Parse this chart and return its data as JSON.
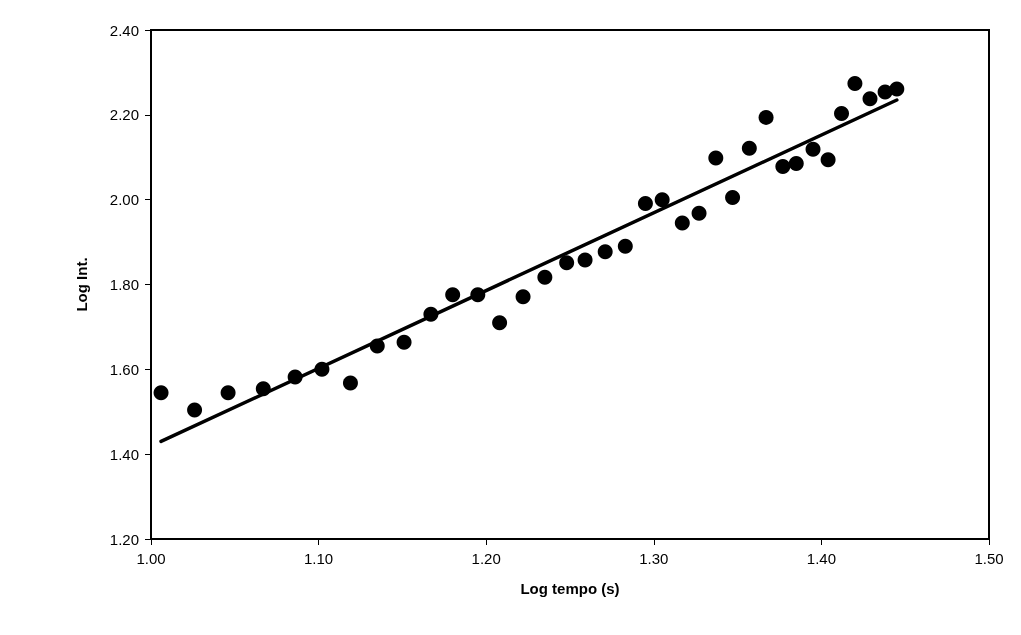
{
  "chart_data": {
    "type": "scatter",
    "xlabel": "Log tempo (s)",
    "ylabel": "Log Int.",
    "xlim": [
      1.0,
      1.5
    ],
    "ylim": [
      1.2,
      2.4
    ],
    "xticks": [
      {
        "value": 1.0,
        "label": "1.00"
      },
      {
        "value": 1.1,
        "label": "1.10"
      },
      {
        "value": 1.2,
        "label": "1.20"
      },
      {
        "value": 1.3,
        "label": "1.30"
      },
      {
        "value": 1.4,
        "label": "1.40"
      },
      {
        "value": 1.5,
        "label": "1.50"
      }
    ],
    "yticks": [
      {
        "value": 1.2,
        "label": "1.20"
      },
      {
        "value": 1.4,
        "label": "1.40"
      },
      {
        "value": 1.6,
        "label": "1.60"
      },
      {
        "value": 1.8,
        "label": "1.80"
      },
      {
        "value": 2.0,
        "label": "2.00"
      },
      {
        "value": 2.2,
        "label": "2.20"
      },
      {
        "value": 2.4,
        "label": "2.40"
      }
    ],
    "grid": false,
    "marker": "circle",
    "series": [
      {
        "color": "#000000",
        "x": [
          1.006,
          1.026,
          1.046,
          1.067,
          1.086,
          1.102,
          1.119,
          1.135,
          1.151,
          1.167,
          1.18,
          1.195,
          1.208,
          1.222,
          1.235,
          1.248,
          1.259,
          1.271,
          1.283,
          1.295,
          1.305,
          1.317,
          1.327,
          1.337,
          1.347,
          1.357,
          1.367,
          1.377,
          1.385,
          1.395,
          1.404,
          1.412,
          1.42,
          1.429,
          1.438,
          1.445
        ],
        "values": [
          1.545,
          1.504,
          1.545,
          1.554,
          1.582,
          1.6,
          1.568,
          1.655,
          1.664,
          1.73,
          1.776,
          1.776,
          1.71,
          1.771,
          1.817,
          1.851,
          1.858,
          1.877,
          1.89,
          1.991,
          2.0,
          1.945,
          1.968,
          2.098,
          2.005,
          2.121,
          2.194,
          2.078,
          2.085,
          2.119,
          2.094,
          2.203,
          2.274,
          2.238,
          2.254,
          2.261
        ]
      },
      {
        "type": "line",
        "color": "#000000",
        "x": [
          1.006,
          1.445
        ],
        "values": [
          1.43,
          2.235
        ],
        "marker": "none",
        "line_style": "solid"
      }
    ]
  }
}
